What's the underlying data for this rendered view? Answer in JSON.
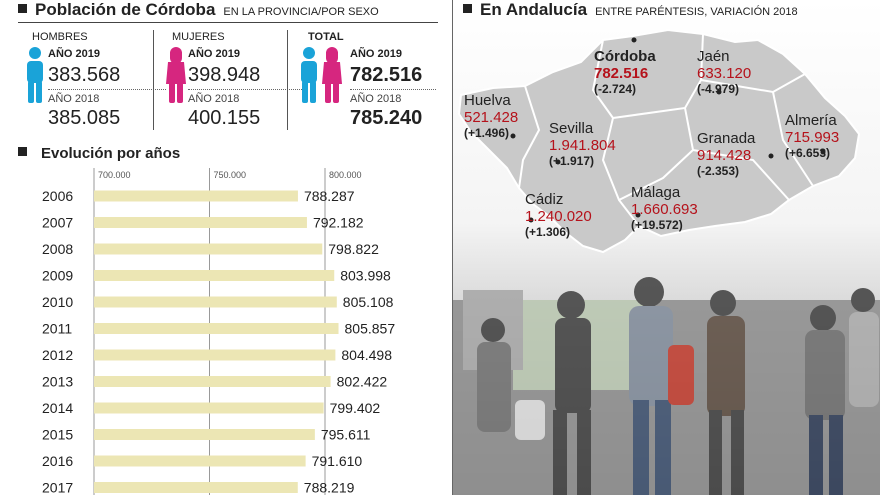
{
  "left": {
    "title": "Población de Córdoba",
    "subtitle": "EN LA PROVINCIA/POR SEXO"
  },
  "stats": {
    "hombres": {
      "label": "HOMBRES",
      "year_2019_label": "AÑO 2019",
      "value_2019": "383.568",
      "year_2018_label": "AÑO 2018",
      "value_2018": "385.085"
    },
    "mujeres": {
      "label": "MUJERES",
      "year_2019_label": "AÑO 2019",
      "value_2019": "398.948",
      "year_2018_label": "AÑO 2018",
      "value_2018": "400.155"
    },
    "total": {
      "label": "TOTAL",
      "year_2019_label": "AÑO 2019",
      "value_2019": "782.516",
      "year_2018_label": "AÑO 2018",
      "value_2018": "785.240"
    }
  },
  "colors": {
    "male": "#1aa3d8",
    "female": "#d6267f",
    "bar": "#ece6b4",
    "map_fill": "#c9c9c9",
    "highlight": "#b5121b"
  },
  "chart_data": {
    "type": "bar",
    "orientation": "horizontal",
    "title": "Evolución por años",
    "categories": [
      "2006",
      "2007",
      "2008",
      "2009",
      "2010",
      "2011",
      "2012",
      "2013",
      "2014",
      "2015",
      "2016",
      "2017"
    ],
    "values": [
      788287,
      792182,
      798822,
      803998,
      805108,
      805857,
      804498,
      802422,
      799402,
      795611,
      791610,
      788219
    ],
    "value_labels": [
      "788.287",
      "792.182",
      "798.822",
      "803.998",
      "805.108",
      "805.857",
      "804.498",
      "802.422",
      "799.402",
      "795.611",
      "791.610",
      "788.219"
    ],
    "ticks": [
      700000,
      750000,
      800000
    ],
    "tick_labels": [
      "700.000",
      "750.000",
      "800.000"
    ],
    "xlim": [
      700000,
      810000
    ],
    "xlabel": "",
    "ylabel": ""
  },
  "right": {
    "title": "En Andalucía",
    "subtitle": "ENTRE PARÉNTESIS, VARIACIÓN 2018"
  },
  "provinces": [
    {
      "key": "cordoba",
      "name": "Córdoba",
      "population": "782.516",
      "change": "(-2.724)"
    },
    {
      "key": "jaen",
      "name": "Jaén",
      "population": "633.120",
      "change": "(-4.979)"
    },
    {
      "key": "huelva",
      "name": "Huelva",
      "population": "521.428",
      "change": "(+1.496)"
    },
    {
      "key": "sevilla",
      "name": "Sevilla",
      "population": "1.941.804",
      "change": "(+1.917)"
    },
    {
      "key": "granada",
      "name": "Granada",
      "population": "914.428",
      "change": "(-2.353)"
    },
    {
      "key": "almeria",
      "name": "Almería",
      "population": "715.993",
      "change": "(+6.653)"
    },
    {
      "key": "cadiz",
      "name": "Cádiz",
      "population": "1.240.020",
      "change": "(+1.306)"
    },
    {
      "key": "malaga",
      "name": "Málaga",
      "population": "1.660.693",
      "change": "(+19.572)"
    }
  ]
}
